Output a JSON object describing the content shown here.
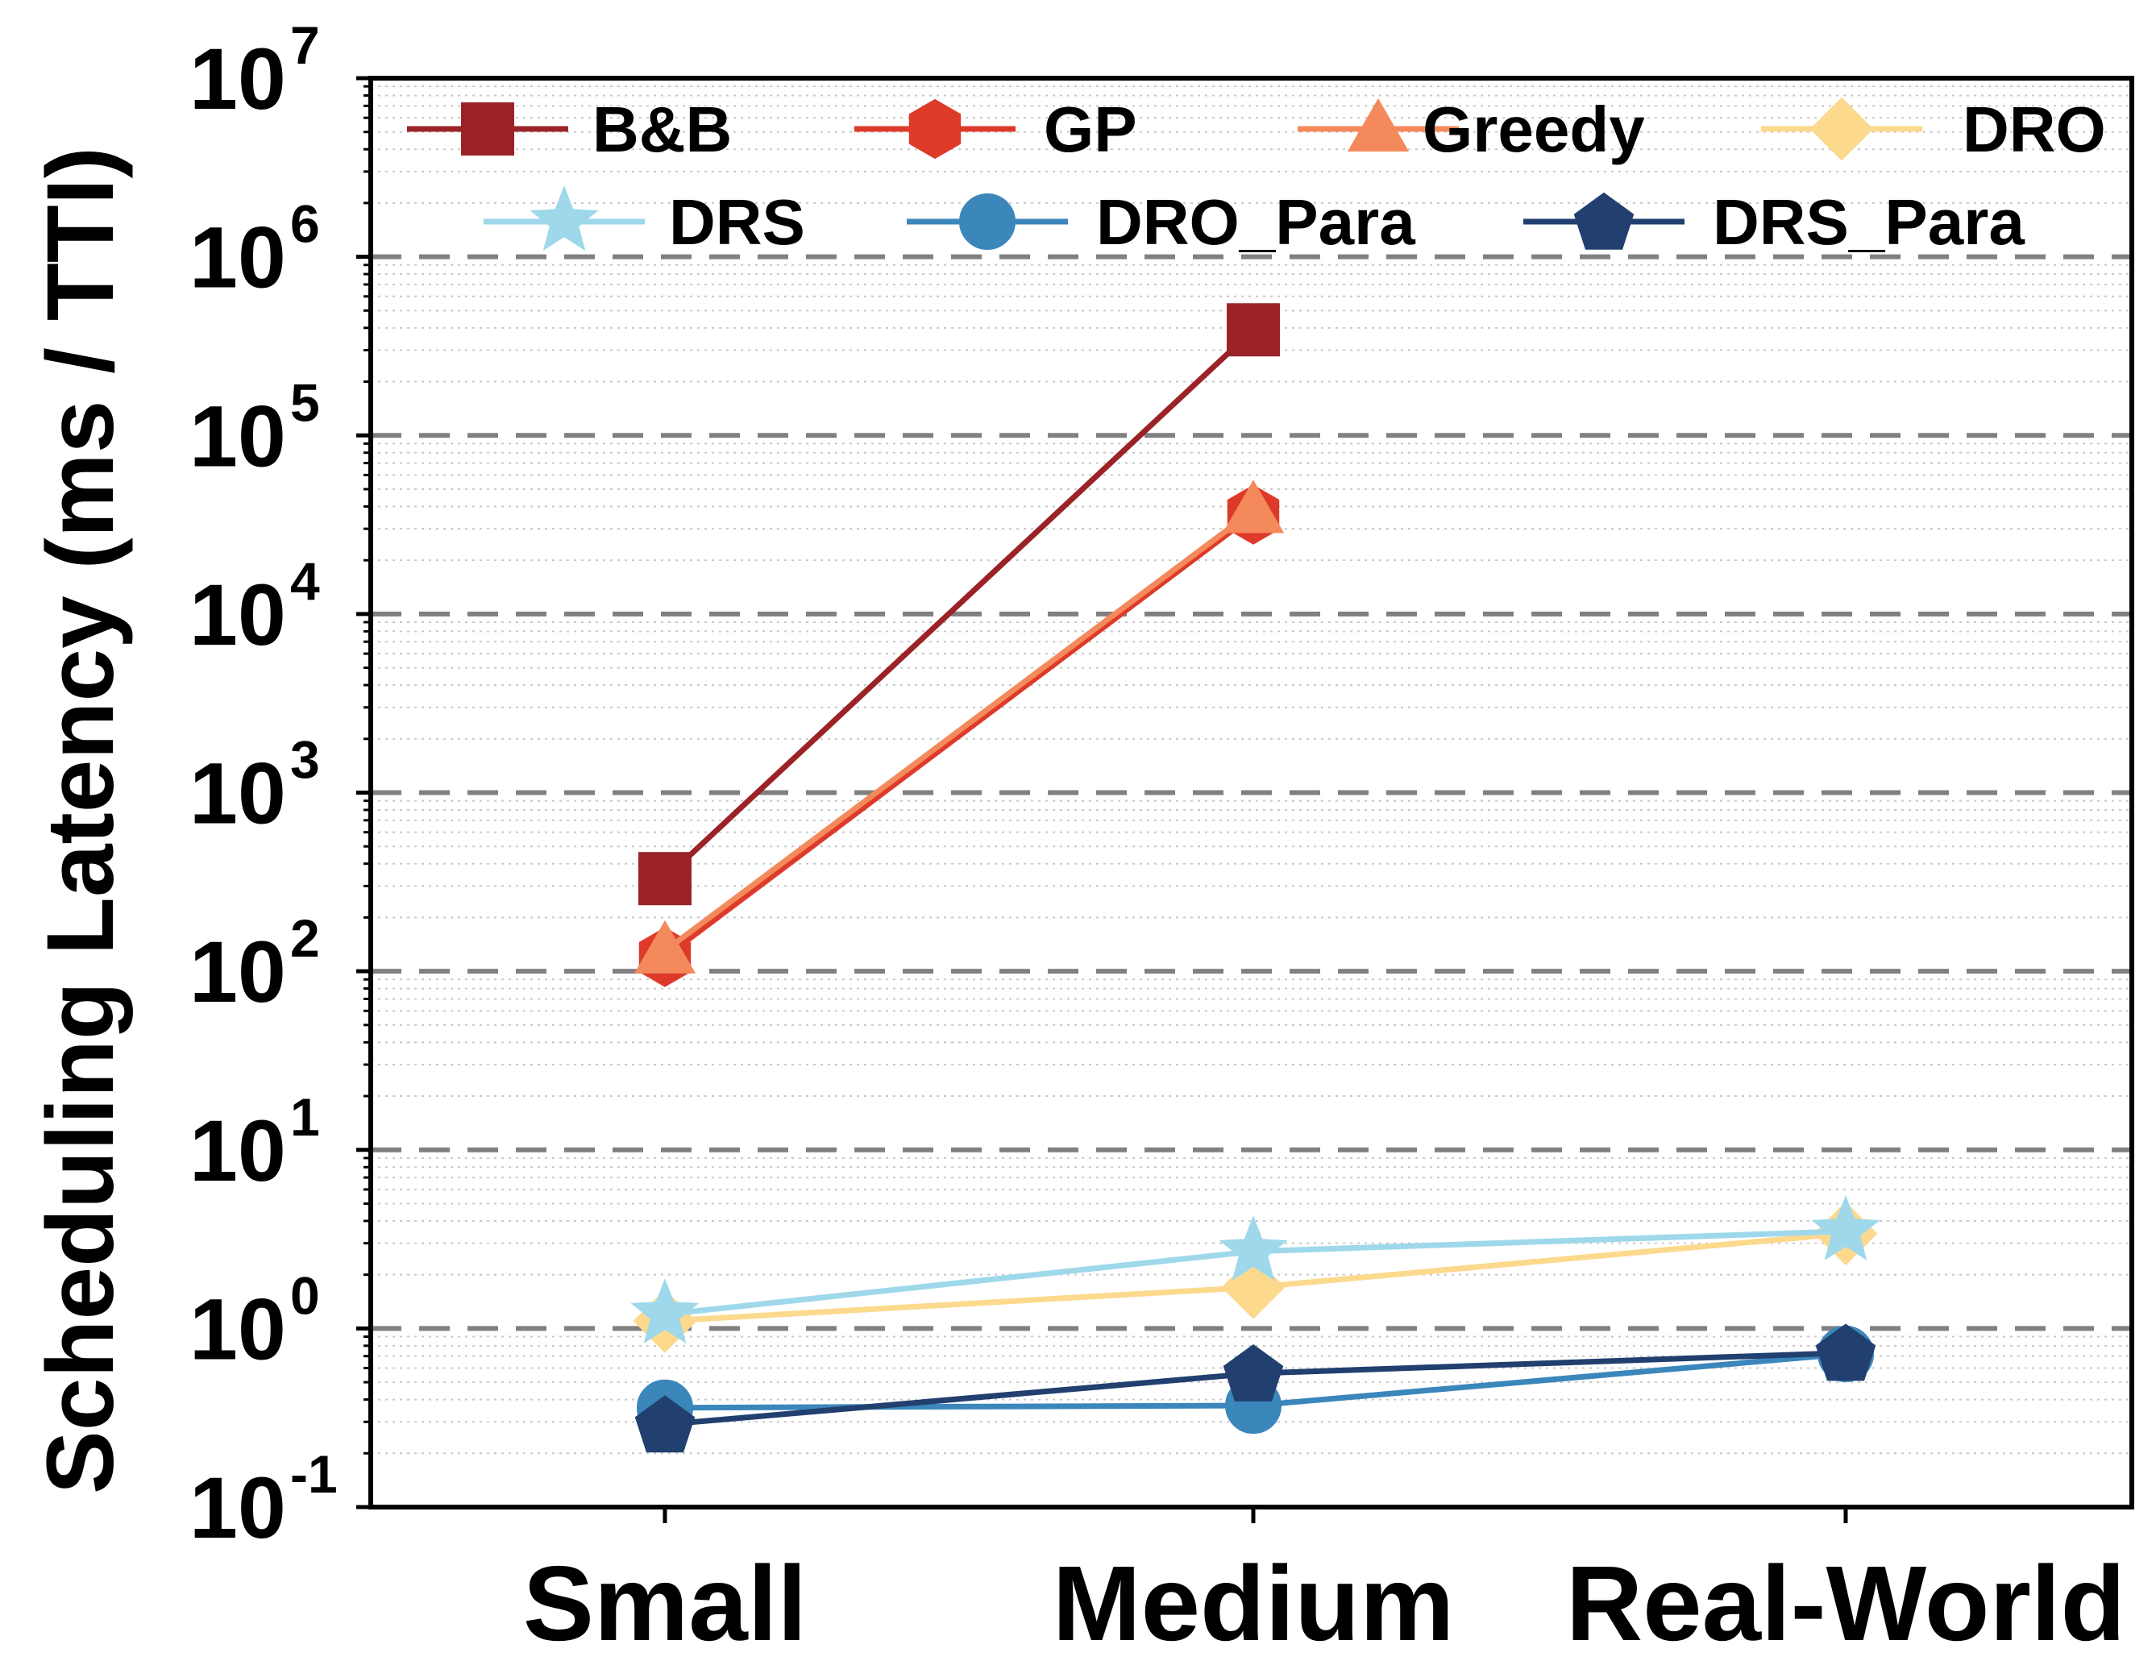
{
  "chart_data": {
    "type": "line",
    "title": "",
    "xlabel": "",
    "ylabel": "Scheduling Latency (ms / TTI)",
    "yscale": "log",
    "ylim": [
      0.1,
      10000000
    ],
    "grid": "dashed major, dotted minor (horizontal)",
    "legend_position": "top",
    "categories": [
      "Small",
      "Medium",
      "Real-World"
    ],
    "y_ticks": [
      {
        "base": "10",
        "exp": "-1",
        "value": 0.1
      },
      {
        "base": "10",
        "exp": "0",
        "value": 1
      },
      {
        "base": "10",
        "exp": "1",
        "value": 10
      },
      {
        "base": "10",
        "exp": "2",
        "value": 100
      },
      {
        "base": "10",
        "exp": "3",
        "value": 1000
      },
      {
        "base": "10",
        "exp": "4",
        "value": 10000
      },
      {
        "base": "10",
        "exp": "5",
        "value": 100000
      },
      {
        "base": "10",
        "exp": "6",
        "value": 1000000
      },
      {
        "base": "10",
        "exp": "7",
        "value": 10000000
      }
    ],
    "series": [
      {
        "name": "B&B",
        "color": "#9b2226",
        "marker": "square",
        "values": [
          330,
          390000,
          null
        ]
      },
      {
        "name": "GP",
        "color": "#dd3a2a",
        "marker": "hexagon",
        "values": [
          120,
          36000,
          null
        ]
      },
      {
        "name": "Greedy",
        "color": "#f4895b",
        "marker": "triangle",
        "values": [
          130,
          38000,
          null
        ]
      },
      {
        "name": "DRO",
        "color": "#fcd98d",
        "marker": "diamond",
        "values": [
          1.1,
          1.7,
          3.4
        ]
      },
      {
        "name": "DRS",
        "color": "#9ed8ea",
        "marker": "star",
        "values": [
          1.2,
          2.7,
          3.5
        ]
      },
      {
        "name": "DRO_Para",
        "color": "#3b86bb",
        "marker": "circle",
        "values": [
          0.36,
          0.37,
          0.72
        ]
      },
      {
        "name": "DRS_Para",
        "color": "#213f6f",
        "marker": "pentagon",
        "values": [
          0.29,
          0.56,
          0.73
        ]
      }
    ]
  }
}
